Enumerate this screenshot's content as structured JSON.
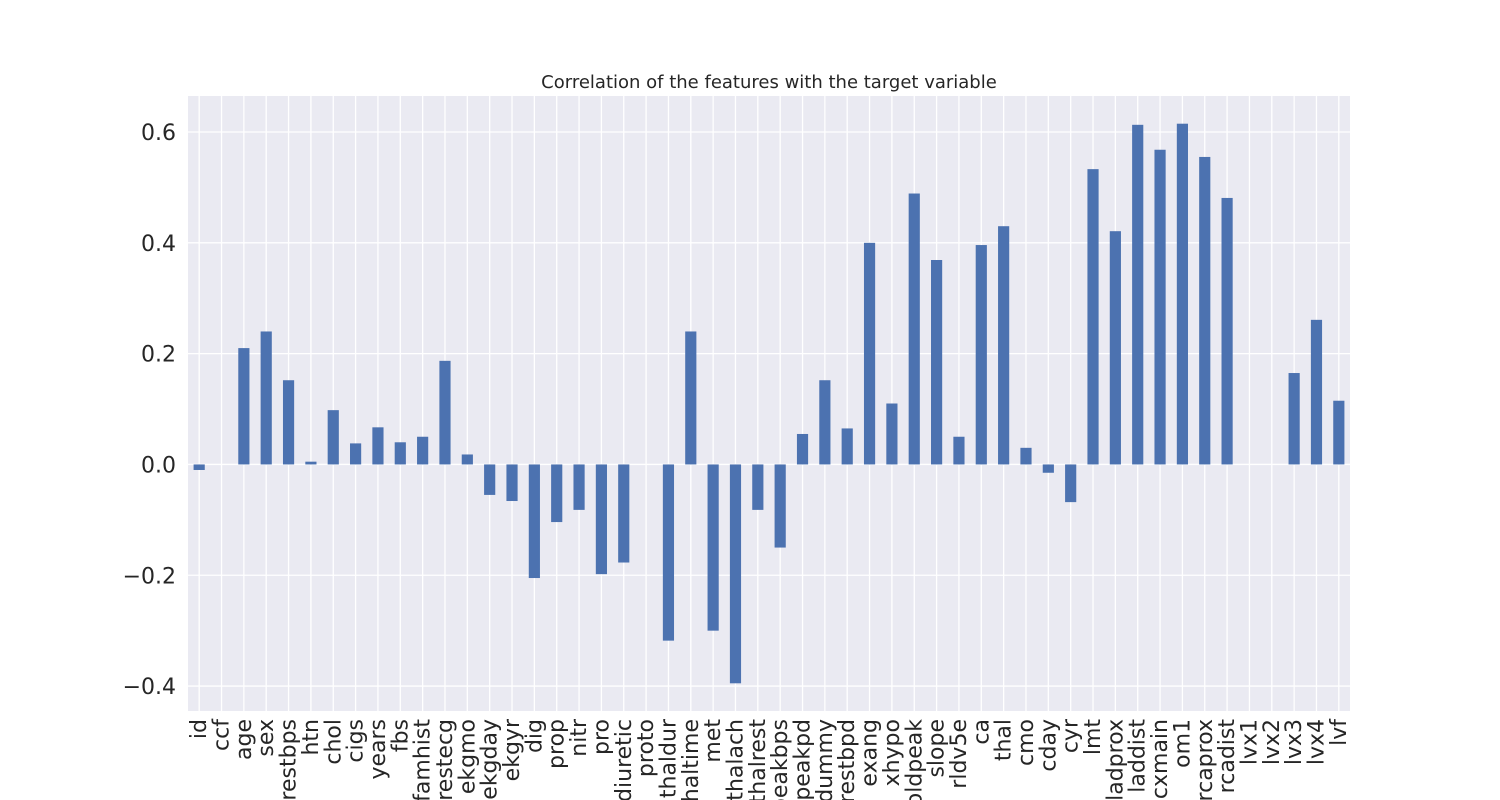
{
  "chart_data": {
    "type": "bar",
    "title": "Correlation of the features with the target variable",
    "xlabel": "",
    "ylabel": "",
    "ylim": [
      -0.445,
      0.665
    ],
    "yticks": [
      -0.4,
      -0.2,
      0.0,
      0.2,
      0.4,
      0.6
    ],
    "ytick_labels": [
      "−0.4",
      "−0.2",
      "0.0",
      "0.2",
      "0.4",
      "0.6"
    ],
    "grid": true,
    "legend": "none",
    "bar_color": "#4c72b0",
    "background_color": "#eaeaf2",
    "grid_color": "#ffffff",
    "categories": [
      "id",
      "ccf",
      "age",
      "sex",
      "trestbps",
      "htn",
      "chol",
      "cigs",
      "years",
      "fbs",
      "famhist",
      "restecg",
      "ekgmo",
      "ekgday",
      "ekgyr",
      "dig",
      "prop",
      "nitr",
      "pro",
      "diuretic",
      "proto",
      "thaldur",
      "thaltime",
      "met",
      "thalach",
      "thalrest",
      "tpeakbps",
      "tpeakpd",
      "dummy",
      "trestbpd",
      "exang",
      "xhypo",
      "oldpeak",
      "slope",
      "rldv5e",
      "ca",
      "thal",
      "cmo",
      "cday",
      "cyr",
      "lmt",
      "ladprox",
      "laddist",
      "cxmain",
      "om1",
      "rcaprox",
      "rcadist",
      "lvx1",
      "lvx2",
      "lvx3",
      "lvx4",
      "lvf"
    ],
    "values": [
      -0.01,
      0.0,
      0.21,
      0.24,
      0.152,
      0.005,
      0.098,
      0.038,
      0.067,
      0.04,
      0.05,
      0.187,
      0.018,
      -0.055,
      -0.066,
      -0.205,
      -0.104,
      -0.082,
      -0.198,
      -0.177,
      0.0,
      -0.318,
      0.24,
      -0.3,
      -0.395,
      -0.082,
      -0.15,
      0.055,
      0.152,
      0.065,
      0.4,
      0.11,
      0.489,
      0.369,
      0.05,
      0.396,
      0.43,
      0.03,
      -0.015,
      -0.068,
      0.533,
      0.421,
      0.613,
      0.568,
      0.615,
      0.555,
      0.481,
      0.0,
      0.0,
      0.165,
      0.261,
      0.115
    ]
  }
}
